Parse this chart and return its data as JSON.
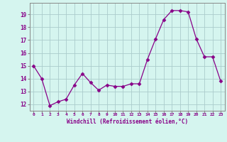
{
  "hours": [
    0,
    1,
    2,
    3,
    4,
    5,
    6,
    7,
    8,
    9,
    10,
    11,
    12,
    13,
    14,
    15,
    16,
    17,
    18,
    19,
    20,
    21,
    22,
    23
  ],
  "values": [
    15.0,
    14.0,
    11.9,
    12.2,
    12.4,
    13.5,
    14.4,
    13.7,
    13.1,
    13.5,
    13.4,
    13.4,
    13.6,
    13.6,
    15.5,
    17.1,
    18.6,
    19.3,
    19.3,
    19.2,
    17.1,
    15.7,
    15.7,
    13.8
  ],
  "line_color": "#880088",
  "marker": "D",
  "marker_size": 2.5,
  "bg_color": "#d5f5ef",
  "grid_color": "#aacccc",
  "axis_color": "#880088",
  "tick_color": "#880088",
  "xlabel": "Windchill (Refroidissement éolien,°C)",
  "ylim": [
    11.5,
    19.9
  ],
  "yticks": [
    12,
    13,
    14,
    15,
    16,
    17,
    18,
    19
  ],
  "xlim": [
    -0.5,
    23.5
  ]
}
